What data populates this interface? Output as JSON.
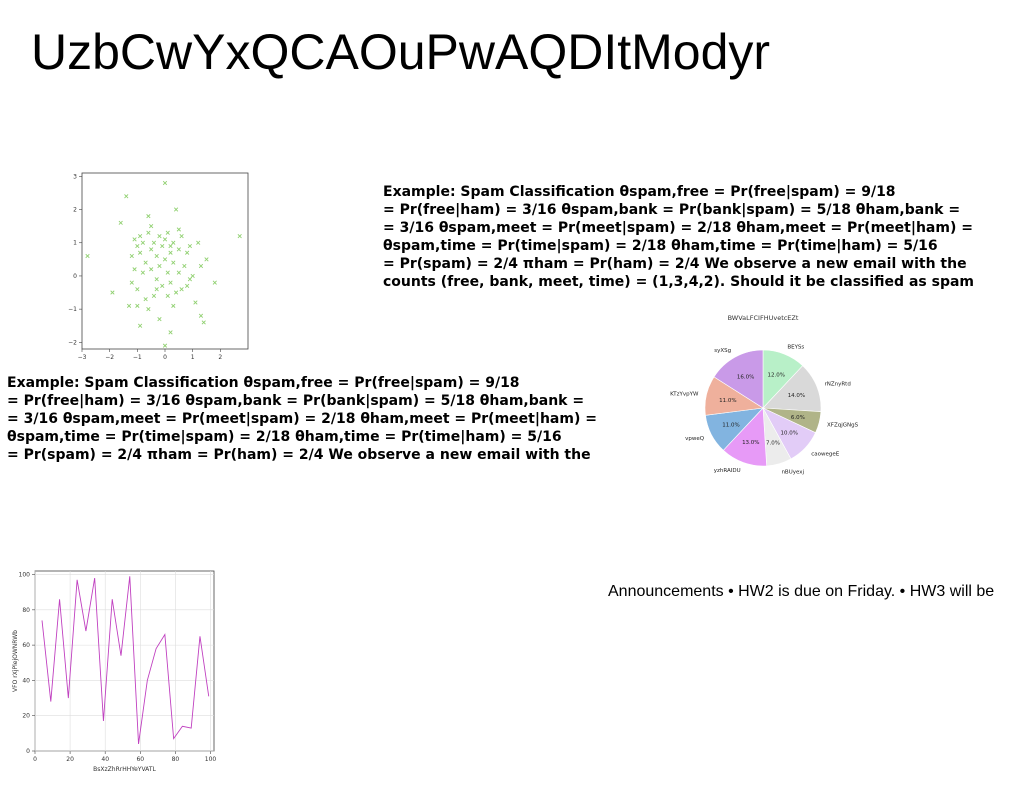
{
  "title": "UzbCwYxQCAOuPwAQDItModyr",
  "paragraph_1": [
    "Example: Spam Classification θspam,free = Pr(free|spam) = 9/18",
    "= Pr(free|ham) = 3/16 θspam,bank = Pr(bank|spam) = 5/18 θham,bank =",
    "= 3/16 θspam,meet = Pr(meet|spam) = 2/18 θham,meet = Pr(meet|ham) =",
    "θspam,time = Pr(time|spam) = 2/18 θham,time = Pr(time|ham) = 5/16",
    "= Pr(spam) = 2/4 πham = Pr(ham) = 2/4 We observe a new email with the",
    "counts (free, bank, meet, time) = (1,3,4,2). Should it be classified as spam"
  ],
  "paragraph_2": [
    "Example: Spam Classification θspam,free = Pr(free|spam) = 9/18",
    "= Pr(free|ham) = 3/16 θspam,bank = Pr(bank|spam) = 5/18 θham,bank =",
    "= 3/16 θspam,meet = Pr(meet|spam) = 2/18 θham,meet = Pr(meet|ham) =",
    "θspam,time = Pr(time|spam) = 2/18 θham,time = Pr(time|ham) = 5/16",
    "= Pr(spam) = 2/4 πham = Pr(ham) = 2/4 We observe a new email with the"
  ],
  "announcement": "Announcements • HW2 is due on Friday. • HW3 will be",
  "chart_data": [
    {
      "type": "scatter",
      "marker": "x",
      "color": "#90d070",
      "xlim": [
        -3,
        3
      ],
      "ylim": [
        -2.2,
        3.1
      ],
      "xticks": [
        "−3",
        "−2",
        "−1",
        "0",
        "1",
        "2"
      ],
      "yticks": [
        "−2",
        "−1",
        "0",
        "1",
        "2",
        "3"
      ],
      "points": [
        [
          -2.8,
          0.6
        ],
        [
          -1.9,
          -0.5
        ],
        [
          -1.4,
          2.4
        ],
        [
          -1.6,
          1.6
        ],
        [
          -0.6,
          1.8
        ],
        [
          0.0,
          2.8
        ],
        [
          0.4,
          2.0
        ],
        [
          2.7,
          1.2
        ],
        [
          -1.1,
          1.1
        ],
        [
          -1.0,
          0.9
        ],
        [
          -0.9,
          0.7
        ],
        [
          -0.8,
          1.0
        ],
        [
          -0.7,
          0.4
        ],
        [
          -0.6,
          1.3
        ],
        [
          -0.5,
          0.8
        ],
        [
          -0.5,
          0.2
        ],
        [
          -0.4,
          1.0
        ],
        [
          -0.3,
          0.6
        ],
        [
          -0.3,
          -0.1
        ],
        [
          -0.2,
          1.2
        ],
        [
          -0.2,
          0.3
        ],
        [
          -0.1,
          0.9
        ],
        [
          -0.1,
          -0.3
        ],
        [
          0.0,
          1.1
        ],
        [
          0.0,
          0.5
        ],
        [
          0.1,
          0.1
        ],
        [
          0.1,
          1.3
        ],
        [
          0.2,
          0.7
        ],
        [
          0.2,
          -0.2
        ],
        [
          0.3,
          1.0
        ],
        [
          0.3,
          0.4
        ],
        [
          0.4,
          -0.5
        ],
        [
          0.5,
          0.8
        ],
        [
          0.5,
          0.1
        ],
        [
          0.6,
          1.2
        ],
        [
          0.7,
          0.3
        ],
        [
          0.8,
          -0.3
        ],
        [
          0.9,
          0.9
        ],
        [
          1.0,
          0.0
        ],
        [
          1.2,
          1.0
        ],
        [
          1.3,
          0.3
        ],
        [
          1.1,
          -0.8
        ],
        [
          1.3,
          -1.2
        ],
        [
          1.4,
          -1.4
        ],
        [
          1.8,
          -0.2
        ],
        [
          -1.2,
          -0.2
        ],
        [
          -1.0,
          -0.9
        ],
        [
          -0.9,
          -1.5
        ],
        [
          -0.6,
          -1.0
        ],
        [
          -0.4,
          -0.6
        ],
        [
          -0.2,
          -1.3
        ],
        [
          0.0,
          -2.1
        ],
        [
          0.2,
          -1.7
        ],
        [
          0.3,
          -0.9
        ],
        [
          -1.1,
          0.2
        ],
        [
          -1.0,
          -0.4
        ],
        [
          -0.8,
          0.1
        ],
        [
          -0.7,
          -0.7
        ],
        [
          -0.3,
          -0.4
        ],
        [
          0.1,
          -0.6
        ],
        [
          0.6,
          -0.4
        ],
        [
          0.9,
          -0.1
        ],
        [
          -0.5,
          1.5
        ],
        [
          0.5,
          1.4
        ],
        [
          -1.2,
          0.6
        ],
        [
          0.8,
          0.7
        ],
        [
          1.5,
          0.5
        ],
        [
          -1.3,
          -0.9
        ],
        [
          -0.9,
          1.2
        ],
        [
          0.2,
          0.9
        ]
      ]
    },
    {
      "type": "pie",
      "title": "BWVaLFCIFHUvetcEZt",
      "slices": [
        {
          "label": "BEYSs",
          "value": 12.0,
          "pct": "12.0%",
          "color": "#b8f0c8"
        },
        {
          "label": "rNZnyRtd",
          "value": 14.0,
          "pct": "14.0%",
          "color": "#d9d9d9"
        },
        {
          "label": "XFZqjGNgS",
          "value": 6.0,
          "pct": "6.0%",
          "color": "#b0b488"
        },
        {
          "label": "caowegeE",
          "value": 10.0,
          "pct": "10.0%",
          "color": "#e2ccf7"
        },
        {
          "label": "nBUyexj",
          "value": 7.0,
          "pct": "7.0%",
          "color": "#ececec"
        },
        {
          "label": "yzhRAIDU",
          "value": 13.0,
          "pct": "13.0%",
          "color": "#e79af7"
        },
        {
          "label": "vpweQ",
          "value": 11.0,
          "pct": "11.0%",
          "color": "#82b4e0"
        },
        {
          "label": "KTzYvpYW",
          "value": 11.0,
          "pct": "11.0%",
          "color": "#efb09c"
        },
        {
          "label": "syXSg",
          "value": 16.0,
          "pct": "16.0%",
          "color": "#c99ae8"
        }
      ]
    },
    {
      "type": "line",
      "xlabel": "BsXzZhRrHHYeYVATL",
      "ylabel": "VFO rXjPlejOWNRWb",
      "color": "#c040c0",
      "xlim": [
        0,
        102
      ],
      "ylim": [
        0,
        102
      ],
      "xticks": [
        "0",
        "20",
        "40",
        "60",
        "80",
        "100"
      ],
      "yticks": [
        "0",
        "20",
        "40",
        "60",
        "80",
        "100"
      ],
      "x": [
        4,
        9,
        14,
        19,
        24,
        29,
        34,
        39,
        44,
        49,
        54,
        59,
        64,
        69,
        74,
        79,
        84,
        89,
        94,
        99
      ],
      "y": [
        74,
        28,
        86,
        30,
        97,
        68,
        98,
        17,
        86,
        54,
        99,
        4,
        40,
        58,
        66,
        7,
        14,
        13,
        65,
        31
      ]
    }
  ]
}
